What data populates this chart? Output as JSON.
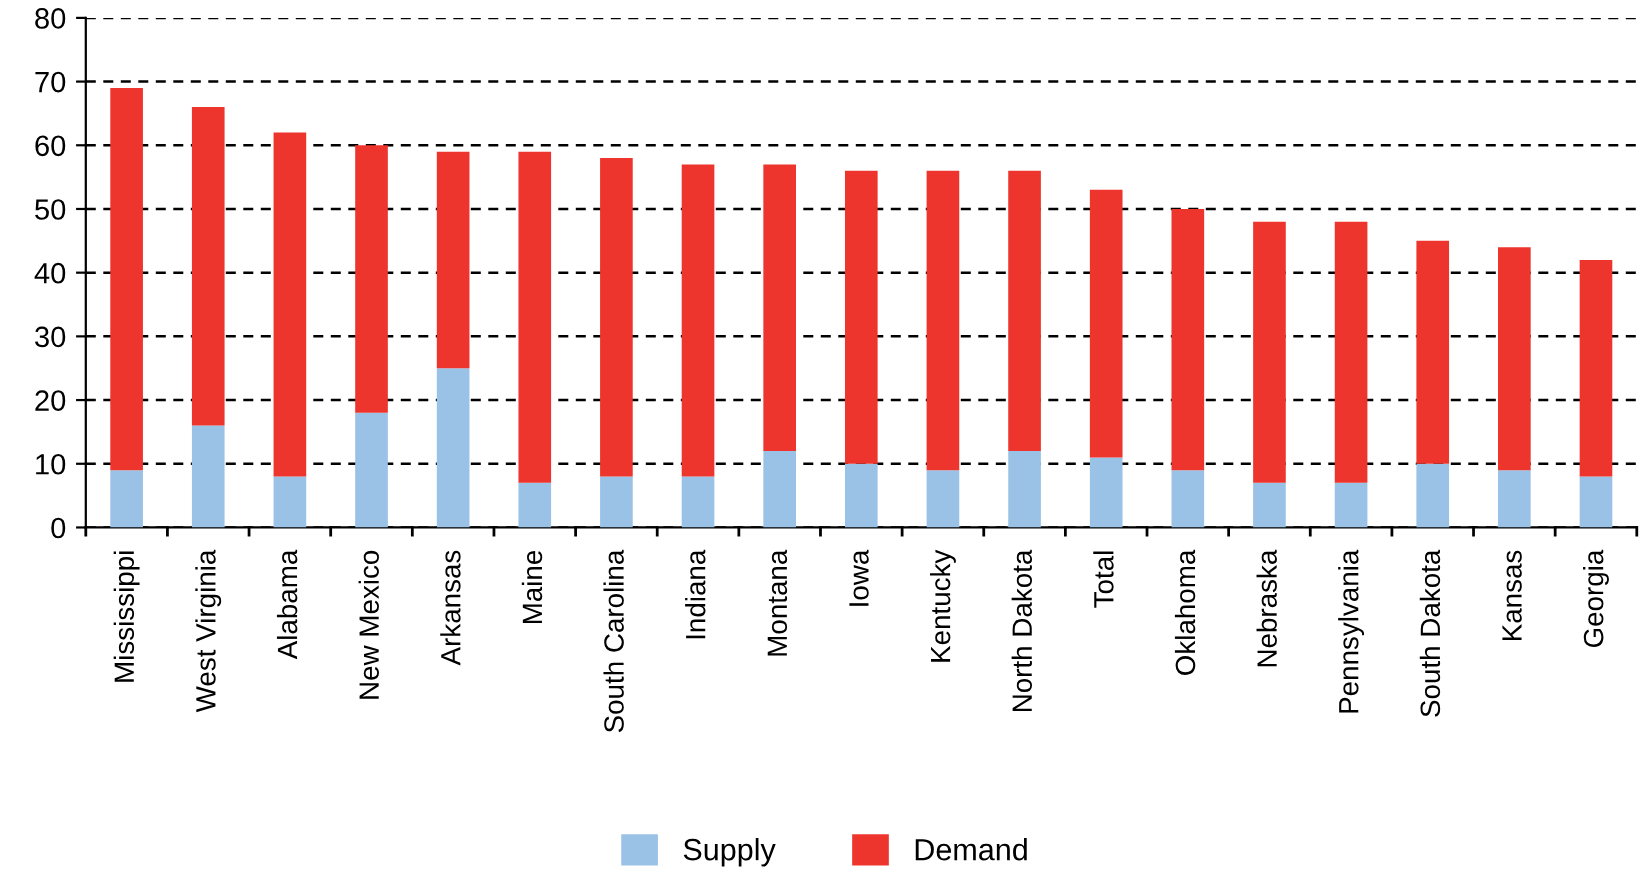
{
  "chart_data": {
    "type": "bar",
    "stacked": true,
    "categories": [
      "Mississippi",
      "West Virginia",
      "Alabama",
      "New Mexico",
      "Arkansas",
      "Maine",
      "South Carolina",
      "Indiana",
      "Montana",
      "Iowa",
      "Kentucky",
      "North Dakota",
      "Total",
      "Oklahoma",
      "Nebraska",
      "Pennsylvania",
      "South Dakota",
      "Kansas",
      "Georgia"
    ],
    "series": [
      {
        "name": "Supply",
        "color": "#9ac2e6",
        "values": [
          9,
          16,
          8,
          18,
          25,
          7,
          8,
          8,
          12,
          10,
          9,
          12,
          11,
          9,
          7,
          7,
          10,
          9,
          8
        ]
      },
      {
        "name": "Demand",
        "color": "#ee352d",
        "values": [
          60,
          50,
          54,
          42,
          34,
          52,
          50,
          49,
          45,
          46,
          47,
          44,
          42,
          41,
          41,
          41,
          35,
          35,
          34
        ]
      }
    ],
    "ylim": [
      0,
      80
    ],
    "yticks": [
      0,
      10,
      20,
      30,
      40,
      50,
      60,
      70,
      80
    ],
    "grid": "y",
    "legend": "bottom"
  }
}
